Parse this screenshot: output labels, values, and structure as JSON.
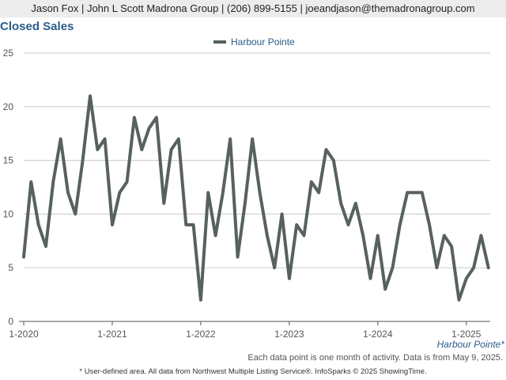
{
  "header": {
    "text": "Jason Fox | John L Scott Madrona Group | (206) 899-5155 | joeandjason@themadronagroup.com"
  },
  "chart_data": {
    "type": "line",
    "title": "Closed Sales",
    "legend_position": "top-center",
    "grid": true,
    "ylim": [
      0,
      25
    ],
    "yticks": [
      0,
      5,
      10,
      15,
      20,
      25
    ],
    "xticks": [
      "1-2020",
      "1-2021",
      "1-2022",
      "1-2023",
      "1-2024",
      "1-2025"
    ],
    "x_start": "1-2020",
    "x_end": "4-2025",
    "color": "#576160",
    "series": [
      {
        "name": "Harbour Pointe",
        "values": [
          6,
          13,
          9,
          7,
          13,
          17,
          12,
          10,
          15,
          21,
          16,
          17,
          9,
          12,
          13,
          19,
          16,
          18,
          19,
          11,
          16,
          17,
          9,
          9,
          2,
          12,
          8,
          12,
          17,
          6,
          11,
          17,
          12,
          8,
          5,
          10,
          4,
          9,
          8,
          13,
          12,
          16,
          15,
          11,
          9,
          11,
          8,
          4,
          8,
          3,
          5,
          9,
          12,
          12,
          12,
          9,
          5,
          8,
          7,
          2,
          4,
          5,
          8,
          5
        ]
      }
    ]
  },
  "area_label": "Harbour Pointe*",
  "note": "Each data point is one month of activity. Data is from May 9, 2025.",
  "footer": "* User-defined area. All data from Northwest Multiple Listing Service®. InfoSparks © 2025 ShowingTime."
}
